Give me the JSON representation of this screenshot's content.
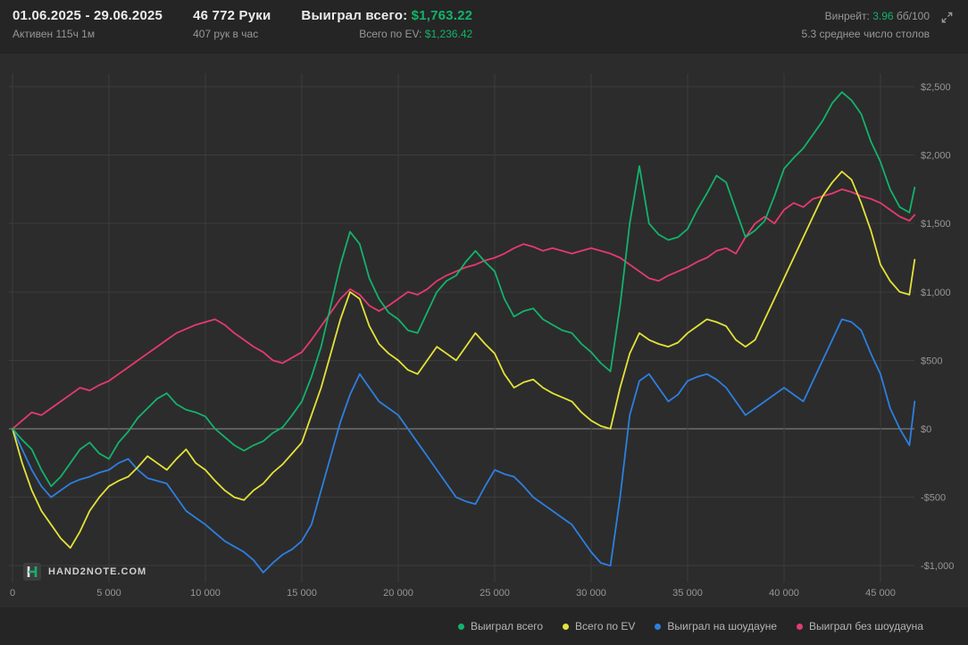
{
  "header": {
    "date_range": "01.06.2025 - 29.06.2025",
    "active_time": "Активен 115ч 1м",
    "hands": "46 772 Руки",
    "hands_per_hour": "407 рук в час",
    "won_total_label": "Выиграл всего:",
    "won_total_value": "$1,763.22",
    "ev_total_label": "Всего по EV:",
    "ev_total_value": "$1,236.42",
    "winrate_label": "Винрейт:",
    "winrate_value": "3.96",
    "winrate_unit": "бб/100",
    "avg_tables": "5.3 среднее число столов"
  },
  "logo": {
    "text": "HAND2NOTE.COM"
  },
  "colors": {
    "accent_green": "#12b36b",
    "grid": "#3c3c3c",
    "zero_line": "#8c8c8c",
    "axis_text": "#969696",
    "chart_bg": "#2c2c2c",
    "bar_bg": "#252525"
  },
  "chart_data": {
    "type": "line",
    "title": "Winnings graph by hands",
    "x_unit": "hands",
    "x_step": 500,
    "x_final": 46772,
    "xlim": [
      0,
      47500
    ],
    "ylim": [
      -1150,
      2600
    ],
    "grid": true,
    "legend_position": "bottom",
    "x_ticks": [
      {
        "v": 0,
        "label": "0"
      },
      {
        "v": 5000,
        "label": "5 000"
      },
      {
        "v": 10000,
        "label": "10 000"
      },
      {
        "v": 15000,
        "label": "15 000"
      },
      {
        "v": 20000,
        "label": "20 000"
      },
      {
        "v": 25000,
        "label": "25 000"
      },
      {
        "v": 30000,
        "label": "30 000"
      },
      {
        "v": 35000,
        "label": "35 000"
      },
      {
        "v": 40000,
        "label": "40 000"
      },
      {
        "v": 45000,
        "label": "45 000"
      }
    ],
    "y_ticks": [
      {
        "v": 2500,
        "label": "$2,500"
      },
      {
        "v": 2000,
        "label": "$2,000"
      },
      {
        "v": 1500,
        "label": "$1,500"
      },
      {
        "v": 1000,
        "label": "$1,000"
      },
      {
        "v": 500,
        "label": "$500"
      },
      {
        "v": 0,
        "label": "$0"
      },
      {
        "v": -500,
        "label": "-$500"
      },
      {
        "v": -1000,
        "label": "-$1,000"
      }
    ],
    "series": [
      {
        "key": "total",
        "name": "Выиграл всего",
        "color": "#12b36b",
        "final_value": 1763.22,
        "values": [
          0,
          -80,
          -150,
          -300,
          -420,
          -350,
          -250,
          -150,
          -100,
          -180,
          -220,
          -100,
          -20,
          80,
          150,
          220,
          260,
          180,
          140,
          120,
          90,
          0,
          -60,
          -120,
          -160,
          -120,
          -90,
          -30,
          10,
          100,
          200,
          380,
          600,
          900,
          1200,
          1440,
          1350,
          1100,
          950,
          850,
          800,
          720,
          700,
          850,
          1000,
          1080,
          1120,
          1220,
          1300,
          1220,
          1150,
          950,
          820,
          860,
          880,
          800,
          760,
          720,
          700,
          620,
          560,
          480,
          420,
          900,
          1500,
          1920,
          1500,
          1420,
          1380,
          1400,
          1460,
          1600,
          1720,
          1850,
          1800,
          1600,
          1400,
          1450,
          1520,
          1700,
          1900,
          1980,
          2050,
          2150,
          2250,
          2380,
          2460,
          2400,
          2300,
          2100,
          1950,
          1750,
          1620,
          1580,
          1763
        ]
      },
      {
        "key": "ev",
        "name": "Всего по EV",
        "color": "#e4e23a",
        "final_value": 1236.42,
        "values": [
          0,
          -250,
          -450,
          -600,
          -700,
          -800,
          -870,
          -750,
          -600,
          -500,
          -420,
          -380,
          -350,
          -280,
          -200,
          -250,
          -300,
          -220,
          -150,
          -250,
          -300,
          -380,
          -450,
          -500,
          -520,
          -450,
          -400,
          -320,
          -260,
          -180,
          -100,
          100,
          300,
          550,
          800,
          1000,
          950,
          750,
          620,
          550,
          500,
          430,
          400,
          500,
          600,
          550,
          500,
          600,
          700,
          620,
          550,
          400,
          300,
          340,
          360,
          300,
          260,
          230,
          200,
          120,
          60,
          20,
          0,
          300,
          550,
          700,
          650,
          620,
          600,
          630,
          700,
          750,
          800,
          780,
          750,
          650,
          600,
          650,
          800,
          950,
          1100,
          1250,
          1400,
          1550,
          1700,
          1800,
          1880,
          1820,
          1650,
          1450,
          1200,
          1080,
          1000,
          980,
          1236
        ]
      },
      {
        "key": "showdown",
        "name": "Выиграл на шоудауне",
        "color": "#2d7fe0",
        "values": [
          0,
          -150,
          -300,
          -420,
          -500,
          -450,
          -400,
          -370,
          -350,
          -320,
          -300,
          -250,
          -220,
          -300,
          -360,
          -380,
          -400,
          -500,
          -600,
          -650,
          -700,
          -760,
          -820,
          -860,
          -900,
          -960,
          -1050,
          -980,
          -920,
          -880,
          -820,
          -700,
          -450,
          -200,
          50,
          250,
          400,
          300,
          200,
          150,
          100,
          0,
          -100,
          -200,
          -300,
          -400,
          -500,
          -530,
          -550,
          -420,
          -300,
          -330,
          -350,
          -420,
          -500,
          -550,
          -600,
          -650,
          -700,
          -800,
          -900,
          -980,
          -1000,
          -500,
          100,
          350,
          400,
          300,
          200,
          250,
          350,
          380,
          400,
          360,
          300,
          200,
          100,
          150,
          200,
          250,
          300,
          250,
          200,
          350,
          500,
          650,
          800,
          780,
          720,
          550,
          400,
          150,
          0,
          -120,
          200
        ]
      },
      {
        "key": "non-showdown",
        "name": "Выиграл без шоудауна",
        "color": "#e63a6e",
        "values": [
          0,
          60,
          120,
          100,
          150,
          200,
          250,
          300,
          280,
          320,
          350,
          400,
          450,
          500,
          550,
          600,
          650,
          700,
          730,
          760,
          780,
          800,
          760,
          700,
          650,
          600,
          560,
          500,
          480,
          520,
          560,
          650,
          750,
          850,
          950,
          1020,
          980,
          900,
          860,
          900,
          950,
          1000,
          980,
          1020,
          1080,
          1120,
          1150,
          1180,
          1200,
          1230,
          1250,
          1280,
          1320,
          1350,
          1330,
          1300,
          1320,
          1300,
          1280,
          1300,
          1320,
          1300,
          1280,
          1250,
          1200,
          1150,
          1100,
          1080,
          1120,
          1150,
          1180,
          1220,
          1250,
          1300,
          1320,
          1280,
          1400,
          1500,
          1550,
          1500,
          1600,
          1650,
          1620,
          1680,
          1700,
          1720,
          1750,
          1730,
          1700,
          1680,
          1650,
          1600,
          1550,
          1520,
          1563
        ]
      }
    ]
  }
}
